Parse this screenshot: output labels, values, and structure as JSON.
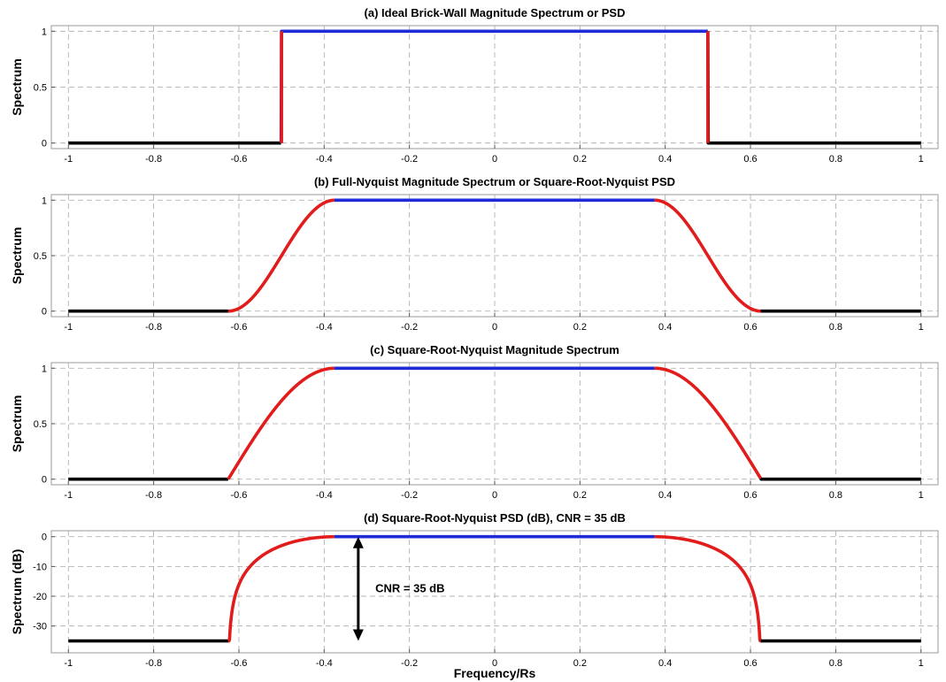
{
  "xlabel": "Frequency/Rs",
  "colors": {
    "stopband": "#000000",
    "transition": "#e21b1b",
    "passband": "#1f2bd6",
    "grid": "#a8a8a8"
  },
  "chart_data": [
    {
      "type": "line",
      "title": "(a) Ideal Brick-Wall Magnitude Spectrum or PSD",
      "xlabel": "",
      "ylabel": "Spectrum",
      "xlim": [
        -1.04,
        1.04
      ],
      "ylim": [
        -0.05,
        1.05
      ],
      "xticks": [
        -1,
        -0.8,
        -0.6,
        -0.4,
        -0.2,
        0,
        0.2,
        0.4,
        0.6,
        0.8,
        1
      ],
      "xtick_labels": [
        "-1",
        "-0.8",
        "-0.6",
        "-0.4",
        "-0.2",
        "0",
        "0.2",
        "0.4",
        "0.6",
        "0.8",
        "1"
      ],
      "yticks": [
        0,
        0.5,
        1
      ],
      "ytick_labels": [
        "0",
        "0.5",
        "1"
      ],
      "grid": true,
      "shape": {
        "kind": "brickwall",
        "edge": 0.5,
        "floor": 0,
        "peak": 1
      }
    },
    {
      "type": "line",
      "title": "(b) Full-Nyquist Magnitude Spectrum or Square-Root-Nyquist PSD",
      "xlabel": "",
      "ylabel": "Spectrum",
      "xlim": [
        -1.04,
        1.04
      ],
      "ylim": [
        -0.05,
        1.05
      ],
      "xticks": [
        -1,
        -0.8,
        -0.6,
        -0.4,
        -0.2,
        0,
        0.2,
        0.4,
        0.6,
        0.8,
        1
      ],
      "xtick_labels": [
        "-1",
        "-0.8",
        "-0.6",
        "-0.4",
        "-0.2",
        "0",
        "0.2",
        "0.4",
        "0.6",
        "0.8",
        "1"
      ],
      "yticks": [
        0,
        0.5,
        1
      ],
      "ytick_labels": [
        "0",
        "0.5",
        "1"
      ],
      "grid": true,
      "shape": {
        "kind": "raised-cosine",
        "pass_edge": 0.375,
        "stop_edge": 0.625,
        "floor": 0,
        "peak": 1
      }
    },
    {
      "type": "line",
      "title": "(c) Square-Root-Nyquist Magnitude Spectrum",
      "xlabel": "",
      "ylabel": "Spectrum",
      "xlim": [
        -1.04,
        1.04
      ],
      "ylim": [
        -0.05,
        1.05
      ],
      "xticks": [
        -1,
        -0.8,
        -0.6,
        -0.4,
        -0.2,
        0,
        0.2,
        0.4,
        0.6,
        0.8,
        1
      ],
      "xtick_labels": [
        "-1",
        "-0.8",
        "-0.6",
        "-0.4",
        "-0.2",
        "0",
        "0.2",
        "0.4",
        "0.6",
        "0.8",
        "1"
      ],
      "yticks": [
        0,
        0.5,
        1
      ],
      "ytick_labels": [
        "0",
        "0.5",
        "1"
      ],
      "grid": true,
      "shape": {
        "kind": "root-raised-cosine",
        "pass_edge": 0.375,
        "stop_edge": 0.625,
        "floor": 0,
        "peak": 1
      }
    },
    {
      "type": "line",
      "title": "(d) Square-Root-Nyquist PSD (dB), CNR = 35 dB",
      "xlabel": "Frequency/Rs",
      "ylabel": "Spectrum (dB)",
      "xlim": [
        -1.04,
        1.04
      ],
      "ylim": [
        -39,
        2
      ],
      "xticks": [
        -1,
        -0.8,
        -0.6,
        -0.4,
        -0.2,
        0,
        0.2,
        0.4,
        0.6,
        0.8,
        1
      ],
      "xtick_labels": [
        "-1",
        "-0.8",
        "-0.6",
        "-0.4",
        "-0.2",
        "0",
        "0.2",
        "0.4",
        "0.6",
        "0.8",
        "1"
      ],
      "yticks": [
        -30,
        -20,
        -10,
        0
      ],
      "ytick_labels": [
        "-30",
        "-20",
        "-10",
        "0"
      ],
      "grid": true,
      "shape": {
        "kind": "raised-cosine-db",
        "pass_edge": 0.375,
        "stop_edge": 0.625,
        "floor": -35,
        "peak": 0
      },
      "annotation": {
        "text": "CNR = 35 dB",
        "arrow_x": -0.32,
        "arrow_from": 0,
        "arrow_to": -35,
        "text_x": -0.28,
        "text_y": -17.5
      }
    }
  ]
}
